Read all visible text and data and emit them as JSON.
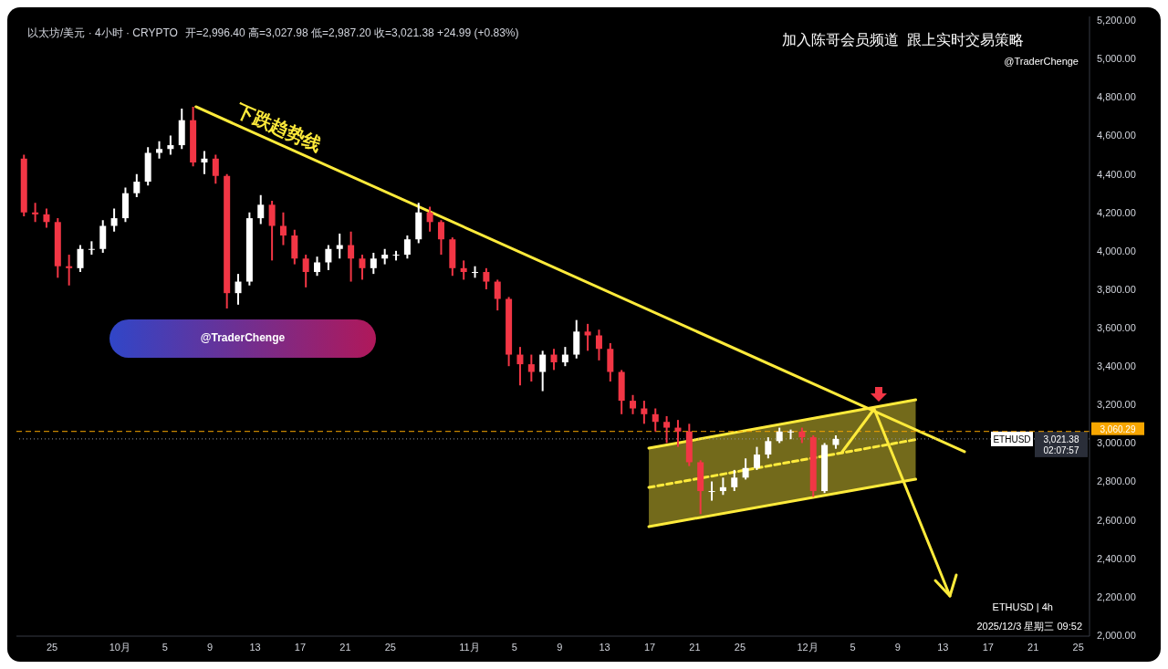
{
  "chart_data": {
    "type": "candlestick",
    "title": "以太坊/美元 · 4小时 · CRYPTO",
    "subtitle": "开=2,996.40 高=3,027.98 低=2,987.20 收=3,021.38 +24.99 (+0.83%)",
    "annotations": [
      "加入陈哥会员频道  跟上实时交易策略",
      "@TraderChenge",
      "下跌趋势线",
      "@TraderChenge",
      "ETHUSD | 4h",
      "2025/12/3 星期三 09:52",
      "ETHUSD",
      "02:07:57"
    ],
    "xlim": [
      "2025-09-21T20:00",
      "2025-12-26T00:00"
    ],
    "xticks": [
      {
        "value": "2025-09-25",
        "label": "25"
      },
      {
        "value": "2025-10-01",
        "label": "10月"
      },
      {
        "value": "2025-10-05",
        "label": "5"
      },
      {
        "value": "2025-10-09",
        "label": "9"
      },
      {
        "value": "2025-10-13",
        "label": "13"
      },
      {
        "value": "2025-10-17",
        "label": "17"
      },
      {
        "value": "2025-10-21",
        "label": "21"
      },
      {
        "value": "2025-10-25",
        "label": "25"
      },
      {
        "value": "2025-11-01",
        "label": "11月"
      },
      {
        "value": "2025-11-05",
        "label": "5"
      },
      {
        "value": "2025-11-09",
        "label": "9"
      },
      {
        "value": "2025-11-13",
        "label": "13"
      },
      {
        "value": "2025-11-17",
        "label": "17"
      },
      {
        "value": "2025-11-21",
        "label": "21"
      },
      {
        "value": "2025-11-25",
        "label": "25"
      },
      {
        "value": "2025-12-01",
        "label": "12月"
      },
      {
        "value": "2025-12-05",
        "label": "5"
      },
      {
        "value": "2025-12-09",
        "label": "9"
      },
      {
        "value": "2025-12-13",
        "label": "13"
      },
      {
        "value": "2025-12-17",
        "label": "17"
      },
      {
        "value": "2025-12-21",
        "label": "21"
      },
      {
        "value": "2025-12-25",
        "label": "25"
      }
    ],
    "ylim": [
      1995,
      5220
    ],
    "yticks": [
      {
        "value": 2000,
        "label": "2,000.00"
      },
      {
        "value": 2200,
        "label": "2,200.00"
      },
      {
        "value": 2400,
        "label": "2,400.00"
      },
      {
        "value": 2600,
        "label": "2,600.00"
      },
      {
        "value": 2800,
        "label": "2,800.00"
      },
      {
        "value": 3000,
        "label": "3,000.00"
      },
      {
        "value": 3200,
        "label": "3,200.00"
      },
      {
        "value": 3400,
        "label": "3,400.00"
      },
      {
        "value": 3600,
        "label": "3,600.00"
      },
      {
        "value": 3800,
        "label": "3,800.00"
      },
      {
        "value": 4000,
        "label": "4,000.00"
      },
      {
        "value": 4200,
        "label": "4,200.00"
      },
      {
        "value": 4400,
        "label": "4,400.00"
      },
      {
        "value": 4600,
        "label": "4,600.00"
      },
      {
        "value": 4800,
        "label": "4,800.00"
      },
      {
        "value": 5000,
        "label": "5,000.00"
      },
      {
        "value": 5200,
        "label": "5,200.00"
      }
    ],
    "ref_lines": [
      {
        "axis": "y",
        "value": 3021.38,
        "label": "3,021.38",
        "color": "#9598a1",
        "line_style": "dotted"
      },
      {
        "axis": "y",
        "value": 3060.29,
        "label": "3,060.29",
        "color": "#f7a600",
        "line_style": "dashed"
      }
    ],
    "series": [
      {
        "x": [
          "2025-09-22T12:00",
          "2025-09-23T12:00",
          "2025-09-24T12:00",
          "2025-09-25T12:00",
          "2025-09-26T12:00",
          "2025-09-27T12:00",
          "2025-09-28T12:00",
          "2025-09-29T12:00",
          "2025-09-30T12:00",
          "2025-10-01T12:00",
          "2025-10-02T12:00",
          "2025-10-03T12:00",
          "2025-10-04T12:00",
          "2025-10-05T12:00",
          "2025-10-06T12:00",
          "2025-10-07T12:00",
          "2025-10-08T12:00",
          "2025-10-09T12:00",
          "2025-10-10T12:00",
          "2025-10-11T12:00",
          "2025-10-12T12:00",
          "2025-10-13T12:00",
          "2025-10-14T12:00",
          "2025-10-15T12:00",
          "2025-10-16T12:00",
          "2025-10-17T12:00",
          "2025-10-18T12:00",
          "2025-10-19T12:00",
          "2025-10-20T12:00",
          "2025-10-21T12:00",
          "2025-10-22T12:00",
          "2025-10-23T12:00",
          "2025-10-24T12:00",
          "2025-10-25T12:00",
          "2025-10-26T12:00",
          "2025-10-27T12:00",
          "2025-10-28T12:00",
          "2025-10-29T12:00",
          "2025-10-30T12:00",
          "2025-10-31T12:00",
          "2025-11-01T12:00",
          "2025-11-02T12:00",
          "2025-11-03T12:00",
          "2025-11-04T12:00",
          "2025-11-05T12:00",
          "2025-11-06T12:00",
          "2025-11-07T12:00",
          "2025-11-08T12:00",
          "2025-11-09T12:00",
          "2025-11-10T12:00",
          "2025-11-11T12:00",
          "2025-11-12T12:00",
          "2025-11-13T12:00",
          "2025-11-14T12:00",
          "2025-11-15T12:00",
          "2025-11-16T12:00",
          "2025-11-17T12:00",
          "2025-11-18T12:00",
          "2025-11-19T12:00",
          "2025-11-20T12:00",
          "2025-11-21T12:00",
          "2025-11-22T12:00",
          "2025-11-23T12:00",
          "2025-11-24T12:00",
          "2025-11-25T12:00",
          "2025-11-26T12:00",
          "2025-11-27T12:00",
          "2025-11-28T12:00",
          "2025-11-29T12:00",
          "2025-11-30T12:00",
          "2025-12-01T12:00",
          "2025-12-02T12:00",
          "2025-12-03T12:00"
        ],
        "ohlc": [
          [
            4480,
            4500,
            4180,
            4200
          ],
          [
            4200,
            4250,
            4150,
            4190
          ],
          [
            4190,
            4220,
            4120,
            4150
          ],
          [
            4150,
            4170,
            3860,
            3920
          ],
          [
            3920,
            3980,
            3820,
            3910
          ],
          [
            3910,
            4030,
            3890,
            4010
          ],
          [
            4010,
            4050,
            3980,
            4010
          ],
          [
            4010,
            4160,
            3990,
            4130
          ],
          [
            4130,
            4220,
            4100,
            4170
          ],
          [
            4170,
            4330,
            4150,
            4300
          ],
          [
            4300,
            4400,
            4280,
            4360
          ],
          [
            4360,
            4540,
            4340,
            4510
          ],
          [
            4510,
            4570,
            4480,
            4530
          ],
          [
            4530,
            4600,
            4500,
            4550
          ],
          [
            4550,
            4740,
            4530,
            4680
          ],
          [
            4680,
            4750,
            4440,
            4460
          ],
          [
            4460,
            4520,
            4400,
            4480
          ],
          [
            4480,
            4500,
            4350,
            4390
          ],
          [
            4390,
            4400,
            3700,
            3780
          ],
          [
            3780,
            3880,
            3720,
            3840
          ],
          [
            3840,
            4200,
            3820,
            4170
          ],
          [
            4170,
            4290,
            4140,
            4240
          ],
          [
            4240,
            4260,
            3950,
            4130
          ],
          [
            4130,
            4200,
            4030,
            4080
          ],
          [
            4080,
            4110,
            3930,
            3960
          ],
          [
            3960,
            3980,
            3810,
            3890
          ],
          [
            3890,
            3970,
            3870,
            3940
          ],
          [
            3940,
            4030,
            3900,
            4010
          ],
          [
            4010,
            4090,
            3960,
            4030
          ],
          [
            4030,
            4100,
            3840,
            3960
          ],
          [
            3960,
            3980,
            3850,
            3910
          ],
          [
            3910,
            3990,
            3880,
            3960
          ],
          [
            3960,
            4010,
            3930,
            3980
          ],
          [
            3980,
            4000,
            3950,
            3980
          ],
          [
            3980,
            4080,
            3960,
            4060
          ],
          [
            4060,
            4250,
            4040,
            4200
          ],
          [
            4200,
            4230,
            4100,
            4150
          ],
          [
            4150,
            4160,
            3980,
            4060
          ],
          [
            4060,
            4070,
            3870,
            3910
          ],
          [
            3910,
            3950,
            3850,
            3890
          ],
          [
            3890,
            3920,
            3860,
            3890
          ],
          [
            3890,
            3910,
            3800,
            3840
          ],
          [
            3840,
            3850,
            3690,
            3750
          ],
          [
            3750,
            3760,
            3400,
            3460
          ],
          [
            3460,
            3500,
            3300,
            3410
          ],
          [
            3410,
            3460,
            3320,
            3370
          ],
          [
            3370,
            3480,
            3270,
            3460
          ],
          [
            3460,
            3490,
            3380,
            3420
          ],
          [
            3420,
            3500,
            3400,
            3460
          ],
          [
            3460,
            3640,
            3440,
            3580
          ],
          [
            3580,
            3620,
            3480,
            3560
          ],
          [
            3560,
            3590,
            3430,
            3490
          ],
          [
            3490,
            3520,
            3320,
            3370
          ],
          [
            3370,
            3380,
            3150,
            3220
          ],
          [
            3220,
            3250,
            3150,
            3180
          ],
          [
            3180,
            3220,
            3100,
            3150
          ],
          [
            3150,
            3180,
            3060,
            3110
          ],
          [
            3110,
            3140,
            3000,
            3080
          ],
          [
            3080,
            3120,
            2980,
            3060
          ],
          [
            3060,
            3100,
            2880,
            2900
          ],
          [
            2900,
            2910,
            2630,
            2750
          ],
          [
            2750,
            2800,
            2700,
            2750
          ],
          [
            2750,
            2820,
            2730,
            2770
          ],
          [
            2770,
            2860,
            2750,
            2820
          ],
          [
            2820,
            2920,
            2810,
            2870
          ],
          [
            2870,
            2980,
            2860,
            2940
          ],
          [
            2940,
            3030,
            2920,
            3010
          ],
          [
            3010,
            3080,
            3000,
            3060
          ],
          [
            3060,
            3070,
            3020,
            3060
          ],
          [
            3060,
            3080,
            3000,
            3030
          ],
          [
            3030,
            3040,
            2720,
            2750
          ],
          [
            2750,
            3000,
            2740,
            2990
          ],
          [
            2990,
            3040,
            2970,
            3021.38
          ]
        ],
        "colors": [
          "#f23645",
          "#f23645",
          "#f23645",
          "#f23645",
          "#f23645",
          "#ffffff",
          "#ffffff",
          "#ffffff",
          "#ffffff",
          "#ffffff",
          "#ffffff",
          "#ffffff",
          "#ffffff",
          "#ffffff",
          "#ffffff",
          "#f23645",
          "#ffffff",
          "#f23645",
          "#f23645",
          "#ffffff",
          "#ffffff",
          "#ffffff",
          "#f23645",
          "#f23645",
          "#f23645",
          "#f23645",
          "#ffffff",
          "#ffffff",
          "#ffffff",
          "#f23645",
          "#f23645",
          "#ffffff",
          "#ffffff",
          "#ffffff",
          "#ffffff",
          "#ffffff",
          "#f23645",
          "#f23645",
          "#f23645",
          "#f23645",
          "#ffffff",
          "#f23645",
          "#f23645",
          "#f23645",
          "#f23645",
          "#f23645",
          "#ffffff",
          "#f23645",
          "#ffffff",
          "#ffffff",
          "#f23645",
          "#f23645",
          "#f23645",
          "#f23645",
          "#f23645",
          "#f23645",
          "#f23645",
          "#f23645",
          "#f23645",
          "#f23645",
          "#f23645",
          "#ffffff",
          "#ffffff",
          "#ffffff",
          "#ffffff",
          "#ffffff",
          "#ffffff",
          "#ffffff",
          "#ffffff",
          "#f23645",
          "#f23645",
          "#ffffff",
          "#ffffff"
        ]
      },
      {
        "type": "line",
        "color": "#ffeb3b",
        "x": [
          "2025-10-07T18:00",
          "2025-12-14T22:00"
        ],
        "values": [
          4750,
          2955
        ]
      },
      {
        "type": "line",
        "color": "#ffeb3b",
        "line_style": "dashed",
        "x": [
          "2025-11-16T22:00",
          "2025-12-10T14:00"
        ],
        "values": [
          2769,
          3018
        ],
        "lower": [
          2565,
          2812
        ],
        "upper": [
          2973,
          3225
        ]
      },
      {
        "type": "line",
        "color": "#ffeb3b",
        "x": [
          "2025-11-16T22:00",
          "2025-12-10T14:00"
        ],
        "values": [
          2973,
          3225
        ]
      },
      {
        "type": "line",
        "color": "#ffeb3b",
        "x": [
          "2025-11-16T22:00",
          "2025-12-10T14:00"
        ],
        "values": [
          2565,
          2812
        ]
      }
    ]
  }
}
